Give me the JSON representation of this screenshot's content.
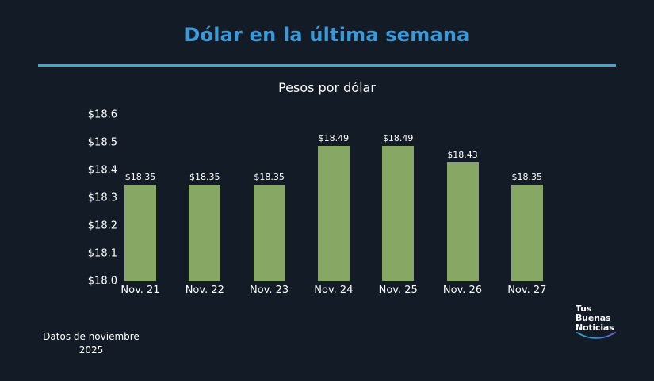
{
  "header": {
    "title": "Dólar en la última semana",
    "subtitle": "Pesos por dólar"
  },
  "footer": {
    "note_line1": "Datos de noviembre",
    "note_line2": "2025"
  },
  "logo": {
    "line1": "Tus",
    "line2": "Buenas",
    "line3": "Noticias"
  },
  "colors": {
    "background": "#131b27",
    "title": "#3a9ad9",
    "rule": "#3aa8d2",
    "bar": "#87a765",
    "text": "#ffffff"
  },
  "chart_data": {
    "type": "bar",
    "title": "Dólar en la última semana",
    "subtitle": "Pesos por dólar",
    "xlabel": "",
    "ylabel": "Pesos por dólar",
    "categories": [
      "Nov. 21",
      "Nov. 22",
      "Nov. 23",
      "Nov. 24",
      "Nov. 25",
      "Nov. 26",
      "Nov. 27"
    ],
    "values": [
      18.35,
      18.35,
      18.35,
      18.49,
      18.49,
      18.43,
      18.35
    ],
    "value_labels": [
      "$18.35",
      "$18.35",
      "$18.35",
      "$18.49",
      "$18.49",
      "$18.43",
      "$18.35"
    ],
    "ylim": [
      18.0,
      18.6
    ],
    "yticks": [
      "$18.0",
      "$18.1",
      "$18.2",
      "$18.3",
      "$18.4",
      "$18.5",
      "$18.6"
    ],
    "ytick_values": [
      18.0,
      18.1,
      18.2,
      18.3,
      18.4,
      18.5,
      18.6
    ],
    "grid": false,
    "legend": null,
    "annotation": "Datos de noviembre 2025"
  }
}
